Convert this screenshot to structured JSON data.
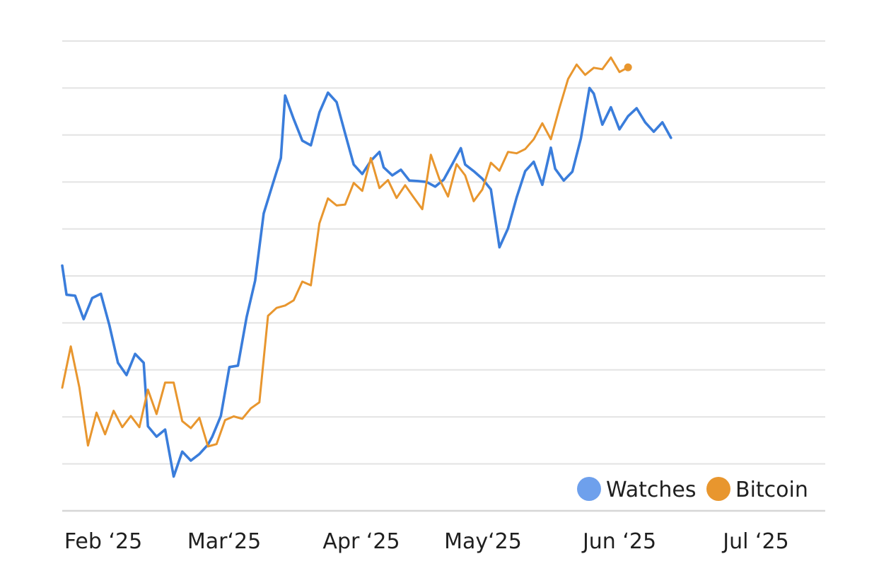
{
  "chart_data": {
    "type": "line",
    "title": "",
    "xlabel": "",
    "ylabel": "",
    "x_ticks": [
      "Feb ‘25",
      "Mar‘25",
      "Apr ‘25",
      "May‘25",
      "Jun ‘25",
      "Jul ‘25"
    ],
    "ylim": [
      0,
      100
    ],
    "grid": true,
    "legend_position": "bottom-right",
    "series": [
      {
        "name": "Watches",
        "color": "#3a7ddb",
        "legend_color": "#6ea0ec",
        "points": [
          [
            "2025-01-27",
            52.2
          ],
          [
            "2025-01-28",
            46.0
          ],
          [
            "2025-01-30",
            45.8
          ],
          [
            "2025-02-01",
            40.8
          ],
          [
            "2025-02-03",
            45.3
          ],
          [
            "2025-02-05",
            46.2
          ],
          [
            "2025-02-07",
            39.5
          ],
          [
            "2025-02-09",
            31.5
          ],
          [
            "2025-02-11",
            28.9
          ],
          [
            "2025-02-13",
            33.4
          ],
          [
            "2025-02-15",
            31.5
          ],
          [
            "2025-02-16",
            18.0
          ],
          [
            "2025-02-18",
            15.8
          ],
          [
            "2025-02-20",
            17.3
          ],
          [
            "2025-02-22",
            7.3
          ],
          [
            "2025-02-24",
            12.6
          ],
          [
            "2025-02-26",
            10.7
          ],
          [
            "2025-02-28",
            12.1
          ],
          [
            "2025-03-02",
            14.1
          ],
          [
            "2025-03-03",
            15.8
          ],
          [
            "2025-03-05",
            20.2
          ],
          [
            "2025-03-07",
            30.6
          ],
          [
            "2025-03-09",
            30.9
          ],
          [
            "2025-03-11",
            41.2
          ],
          [
            "2025-03-13",
            49.0
          ],
          [
            "2025-03-15",
            63.3
          ],
          [
            "2025-03-17",
            69.2
          ],
          [
            "2025-03-19",
            75.1
          ],
          [
            "2025-03-20",
            88.4
          ],
          [
            "2025-03-22",
            83.4
          ],
          [
            "2025-03-24",
            78.8
          ],
          [
            "2025-03-26",
            77.8
          ],
          [
            "2025-03-28",
            84.8
          ],
          [
            "2025-03-30",
            89.0
          ],
          [
            "2025-04-01",
            87.0
          ],
          [
            "2025-04-03",
            80.3
          ],
          [
            "2025-04-05",
            73.7
          ],
          [
            "2025-04-07",
            71.7
          ],
          [
            "2025-04-09",
            74.5
          ],
          [
            "2025-04-11",
            76.4
          ],
          [
            "2025-04-12",
            73.1
          ],
          [
            "2025-04-14",
            71.4
          ],
          [
            "2025-04-16",
            72.6
          ],
          [
            "2025-04-18",
            70.3
          ],
          [
            "2025-04-20",
            70.2
          ],
          [
            "2025-04-22",
            70.0
          ],
          [
            "2025-04-24",
            69.0
          ],
          [
            "2025-04-26",
            70.5
          ],
          [
            "2025-04-28",
            73.8
          ],
          [
            "2025-04-30",
            77.2
          ],
          [
            "2025-05-01",
            73.7
          ],
          [
            "2025-05-03",
            72.3
          ],
          [
            "2025-05-05",
            70.7
          ],
          [
            "2025-05-07",
            68.4
          ],
          [
            "2025-05-09",
            56.1
          ],
          [
            "2025-05-11",
            60.1
          ],
          [
            "2025-05-13",
            66.7
          ],
          [
            "2025-05-15",
            72.3
          ],
          [
            "2025-05-17",
            74.3
          ],
          [
            "2025-05-19",
            69.4
          ],
          [
            "2025-05-21",
            77.3
          ],
          [
            "2025-05-22",
            72.8
          ],
          [
            "2025-05-24",
            70.3
          ],
          [
            "2025-05-26",
            72.2
          ],
          [
            "2025-05-28",
            79.3
          ],
          [
            "2025-05-30",
            90.0
          ],
          [
            "2025-05-31",
            88.8
          ],
          [
            "2025-06-02",
            82.2
          ],
          [
            "2025-06-04",
            85.9
          ],
          [
            "2025-06-06",
            81.2
          ],
          [
            "2025-06-08",
            84.0
          ],
          [
            "2025-06-10",
            85.7
          ],
          [
            "2025-06-12",
            82.7
          ],
          [
            "2025-06-14",
            80.7
          ],
          [
            "2025-06-16",
            82.7
          ],
          [
            "2025-06-18",
            79.4
          ]
        ]
      },
      {
        "name": "Bitcoin",
        "color": "#e8962e",
        "legend_color": "#e8962e",
        "points": [
          [
            "2025-01-27",
            26.2
          ],
          [
            "2025-01-29",
            35.0
          ],
          [
            "2025-01-31",
            26.3
          ],
          [
            "2025-02-02",
            13.9
          ],
          [
            "2025-02-04",
            20.9
          ],
          [
            "2025-02-06",
            16.3
          ],
          [
            "2025-02-08",
            21.3
          ],
          [
            "2025-02-10",
            17.8
          ],
          [
            "2025-02-12",
            20.2
          ],
          [
            "2025-02-14",
            17.8
          ],
          [
            "2025-02-16",
            25.8
          ],
          [
            "2025-02-18",
            20.6
          ],
          [
            "2025-02-20",
            27.3
          ],
          [
            "2025-02-22",
            27.3
          ],
          [
            "2025-02-24",
            19.1
          ],
          [
            "2025-02-26",
            17.6
          ],
          [
            "2025-02-28",
            19.8
          ],
          [
            "2025-03-02",
            13.7
          ],
          [
            "2025-03-04",
            14.2
          ],
          [
            "2025-03-06",
            19.3
          ],
          [
            "2025-03-08",
            20.1
          ],
          [
            "2025-03-10",
            19.6
          ],
          [
            "2025-03-12",
            21.8
          ],
          [
            "2025-03-14",
            23.1
          ],
          [
            "2025-03-16",
            41.5
          ],
          [
            "2025-03-18",
            43.2
          ],
          [
            "2025-03-20",
            43.7
          ],
          [
            "2025-03-22",
            44.8
          ],
          [
            "2025-03-24",
            48.8
          ],
          [
            "2025-03-26",
            48.0
          ],
          [
            "2025-03-28",
            61.2
          ],
          [
            "2025-03-30",
            66.5
          ],
          [
            "2025-04-01",
            65.0
          ],
          [
            "2025-04-03",
            65.2
          ],
          [
            "2025-04-05",
            69.8
          ],
          [
            "2025-04-07",
            68.1
          ],
          [
            "2025-04-09",
            75.1
          ],
          [
            "2025-04-11",
            68.7
          ],
          [
            "2025-04-13",
            70.4
          ],
          [
            "2025-04-15",
            66.6
          ],
          [
            "2025-04-17",
            69.3
          ],
          [
            "2025-04-19",
            66.7
          ],
          [
            "2025-04-21",
            64.2
          ],
          [
            "2025-04-23",
            75.8
          ],
          [
            "2025-04-25",
            70.6
          ],
          [
            "2025-04-27",
            66.9
          ],
          [
            "2025-04-29",
            73.8
          ],
          [
            "2025-05-01",
            71.4
          ],
          [
            "2025-05-03",
            65.9
          ],
          [
            "2025-05-05",
            68.4
          ],
          [
            "2025-05-07",
            74.1
          ],
          [
            "2025-05-09",
            72.4
          ],
          [
            "2025-05-11",
            76.4
          ],
          [
            "2025-05-13",
            76.1
          ],
          [
            "2025-05-15",
            77.0
          ],
          [
            "2025-05-17",
            79.1
          ],
          [
            "2025-05-19",
            82.5
          ],
          [
            "2025-05-21",
            79.1
          ],
          [
            "2025-05-23",
            85.8
          ],
          [
            "2025-05-25",
            91.9
          ],
          [
            "2025-05-27",
            95.0
          ],
          [
            "2025-05-29",
            92.8
          ],
          [
            "2025-05-31",
            94.3
          ],
          [
            "2025-06-02",
            94.0
          ],
          [
            "2025-06-04",
            96.5
          ],
          [
            "2025-06-06",
            93.4
          ],
          [
            "2025-06-08",
            94.4
          ]
        ]
      }
    ]
  }
}
